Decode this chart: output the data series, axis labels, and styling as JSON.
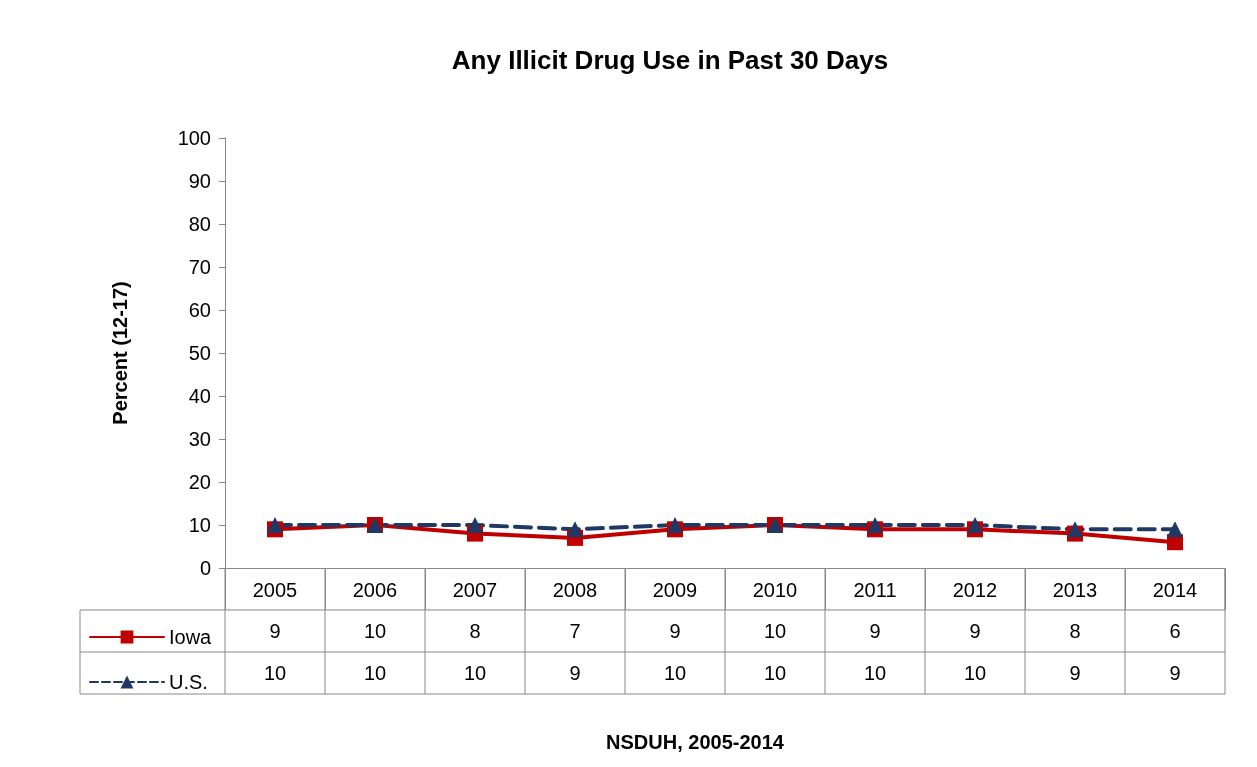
{
  "chart_data": {
    "type": "line",
    "title": "Any Illicit Drug Use in Past 30 Days",
    "ylabel": "Percent (12-17)",
    "annotations": [
      "NSDUH, 2005-2014"
    ],
    "categories": [
      "2005",
      "2006",
      "2007",
      "2008",
      "2009",
      "2010",
      "2011",
      "2012",
      "2013",
      "2014"
    ],
    "series": [
      {
        "name": "Iowa",
        "color": "#c00000",
        "marker": "square",
        "line_style": "solid",
        "values": [
          9,
          10,
          8,
          7,
          9,
          10,
          9,
          9,
          8,
          6
        ]
      },
      {
        "name": "U.S.",
        "color": "#1f3864",
        "marker": "triangle",
        "line_style": "dashed",
        "values": [
          10,
          10,
          10,
          9,
          10,
          10,
          10,
          10,
          9,
          9
        ]
      }
    ],
    "ylim": [
      0,
      100
    ],
    "yticks": [
      0,
      10,
      20,
      30,
      40,
      50,
      60,
      70,
      80,
      90,
      100
    ],
    "grid": false,
    "legend": "bottom left",
    "data_labels": true
  }
}
